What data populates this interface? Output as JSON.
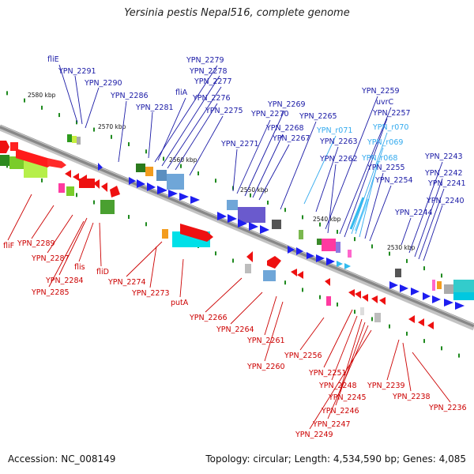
{
  "title": "Yersinia pestis Nepal516, complete genome",
  "footer": {
    "accession": "Accession: NC_008149",
    "summary": "Topology: circular; Length: 4,534,590 bp; Genes: 4,085"
  },
  "colors": {
    "axis": "#777777",
    "upper_label": "#1a1aa6",
    "lower_label": "#cc0000",
    "rna_label": "#33aaee",
    "tick": "#1f8a1f"
  },
  "ruler": [
    "2580 kbp",
    "2570 kbp",
    "2560 kbp",
    "2550 kbp",
    "2540 kbp",
    "2530 kbp"
  ],
  "upper_labels": [
    {
      "text": "fliE",
      "type": "gene"
    },
    {
      "text": "YPN_2291",
      "type": "gene"
    },
    {
      "text": "YPN_2290",
      "type": "gene"
    },
    {
      "text": "YPN_2286",
      "type": "gene"
    },
    {
      "text": "YPN_2281",
      "type": "gene"
    },
    {
      "text": "YPN_2279",
      "type": "gene"
    },
    {
      "text": "YPN_2278",
      "type": "gene"
    },
    {
      "text": "YPN_2277",
      "type": "gene"
    },
    {
      "text": "fliA",
      "type": "gene"
    },
    {
      "text": "YPN_2276",
      "type": "gene"
    },
    {
      "text": "YPN_2275",
      "type": "gene"
    },
    {
      "text": "YPN_2271",
      "type": "gene"
    },
    {
      "text": "YPN_2270",
      "type": "gene"
    },
    {
      "text": "YPN_2269",
      "type": "gene"
    },
    {
      "text": "YPN_2268",
      "type": "gene"
    },
    {
      "text": "YPN_2267",
      "type": "gene"
    },
    {
      "text": "YPN_2265",
      "type": "gene"
    },
    {
      "text": "YPN_r071",
      "type": "rna"
    },
    {
      "text": "YPN_2263",
      "type": "gene"
    },
    {
      "text": "YPN_2262",
      "type": "gene"
    },
    {
      "text": "YPN_2259",
      "type": "gene"
    },
    {
      "text": "uvrC",
      "type": "gene"
    },
    {
      "text": "YPN_2257",
      "type": "gene"
    },
    {
      "text": "YPN_r070",
      "type": "rna"
    },
    {
      "text": "YPN_r069",
      "type": "rna"
    },
    {
      "text": "YPN_r068",
      "type": "rna"
    },
    {
      "text": "YPN_2255",
      "type": "gene"
    },
    {
      "text": "YPN_2254",
      "type": "gene"
    },
    {
      "text": "YPN_2243",
      "type": "gene"
    },
    {
      "text": "YPN_2242",
      "type": "gene"
    },
    {
      "text": "YPN_2241",
      "type": "gene"
    },
    {
      "text": "YPN_2240",
      "type": "gene"
    },
    {
      "text": "YPN_2244",
      "type": "gene"
    }
  ],
  "lower_labels": [
    "fliF",
    "YPN_2289",
    "YPN_2287",
    "flis",
    "YPN_2284",
    "fliD",
    "YPN_2285",
    "YPN_2274",
    "YPN_2273",
    "putA",
    "YPN_2266",
    "YPN_2264",
    "YPN_2261",
    "YPN_2260",
    "YPN_2256",
    "YPN_2251",
    "YPN_2248",
    "YPN_2245",
    "YPN_2246",
    "YPN_2247",
    "YPN_2249",
    "YPN_2239",
    "YPN_2238",
    "YPN_2236"
  ]
}
